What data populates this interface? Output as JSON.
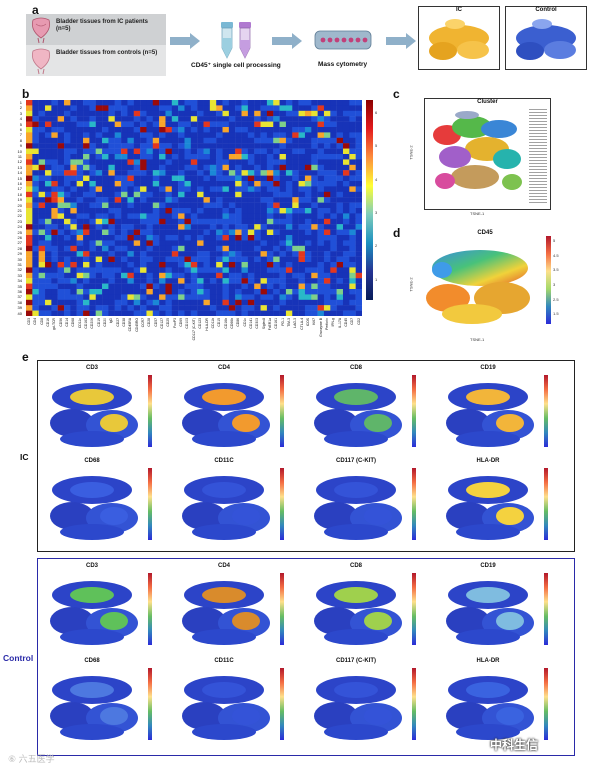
{
  "panel_a": {
    "letter": "a",
    "ic_label": "Bladder tissues from IC patients (n=5)",
    "control_label": "Bladder tissues from controls (n=5)",
    "step1": "CD45⁺ single cell processing",
    "step2": "Mass cytometry",
    "map_ic_title": "IC",
    "map_control_title": "Control"
  },
  "panel_b": {
    "letter": "b",
    "rows": [
      "1",
      "2",
      "3",
      "4",
      "5",
      "6",
      "7",
      "8",
      "9",
      "10",
      "11",
      "12",
      "13",
      "14",
      "15",
      "16",
      "17",
      "18",
      "19",
      "20",
      "21",
      "22",
      "23",
      "24",
      "25",
      "26",
      "27",
      "28",
      "29",
      "30",
      "31",
      "32",
      "33",
      "34",
      "35",
      "36",
      "37",
      "38",
      "39",
      "40"
    ],
    "columns": [
      "CD3",
      "CD4",
      "CD8",
      "CD16",
      "gd-TCR",
      "CD56",
      "CD14",
      "CD68",
      "CD11c",
      "CD163",
      "CD206",
      "CD19",
      "CD20",
      "IgD",
      "CD27",
      "CD38",
      "CD45RA",
      "CD45RO",
      "CCR7",
      "CD28",
      "CD57",
      "CD127",
      "CD25",
      "FoxP3",
      "CD69",
      "CD103",
      "CD117 (C-KIT)",
      "CD123",
      "HLA-DR",
      "CD11b",
      "CD15",
      "CD16b",
      "CD66b",
      "CD86",
      "CD1c",
      "CD141",
      "CD303",
      "Siglec8",
      "FcER1a",
      "CD161",
      "PD-1",
      "TIM-3",
      "LAG-3",
      "CTLA-4",
      "ICOS",
      "Ki67",
      "Granzyme B",
      "Perforin",
      "IFN-g",
      "IL-17A",
      "CD45",
      "CD7",
      "CD2"
    ],
    "colorbar_ticks": [
      "6",
      "5",
      "4",
      "3",
      "2",
      "1"
    ]
  },
  "panel_c": {
    "letter": "c",
    "title": "Cluster",
    "xlabel": "TSNE-1",
    "ylabel": "TSNE-2"
  },
  "panel_d": {
    "letter": "d",
    "title": "CD45",
    "xlabel": "TSNE-1",
    "ylabel": "TSNE-2",
    "ticks": [
      "5",
      "4.5",
      "3.5",
      "3",
      "2.5",
      "1.5"
    ]
  },
  "panel_e": {
    "letter": "e",
    "ic_label": "IC",
    "control_label": "Control",
    "ic_maps": [
      "CD3",
      "CD4",
      "CD8",
      "CD19",
      "CD68",
      "CD11C",
      "CD117 (C-KIT)",
      "HLA-DR"
    ],
    "control_maps": [
      "CD3",
      "CD4",
      "CD8",
      "CD19",
      "CD68",
      "CD11C",
      "CD117 (C-KIT)",
      "HLA-DR"
    ]
  },
  "watermarks": {
    "left": "⑥ 六五医学",
    "right": "中科生信"
  }
}
